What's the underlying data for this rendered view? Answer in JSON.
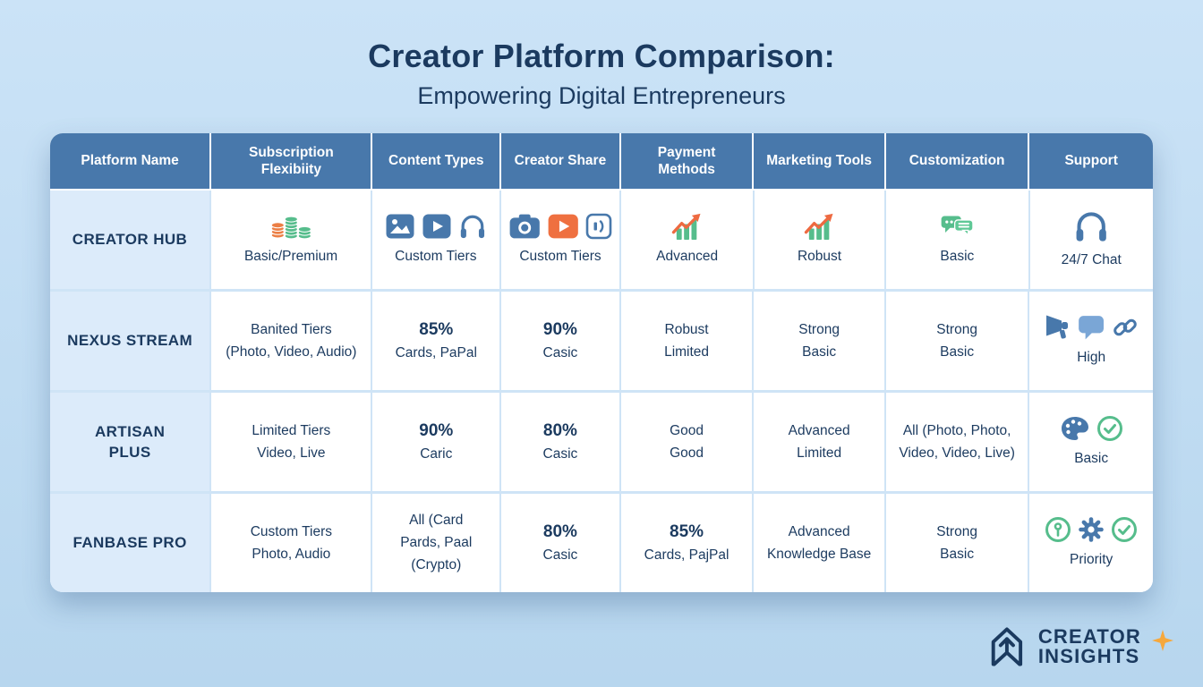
{
  "page": {
    "title": "Creator Platform Comparison:",
    "subtitle": "Empowering Digital Entrepreneurs"
  },
  "colors": {
    "navy_text": "#1b3a5f",
    "header_blue": "#4878ab",
    "light_blue_background": "#cbe3f7",
    "cell_divider": "#cfe4f6",
    "platform_column_background": "#dcebfa",
    "icon_green": "#56bd8c",
    "icon_orange": "#ee6a41",
    "icon_blue": "#4878ab",
    "sparkle_orange": "#f6a83c"
  },
  "table": {
    "headers": [
      "Platform Name",
      "Subscription Flexibiity",
      "Content Types",
      "Creator Share",
      "Payment Methods",
      "Marketing Tools",
      "Customization",
      "Support"
    ],
    "rows": [
      {
        "platform": [
          "CREATOR HUB"
        ],
        "cells": [
          {
            "icons": [
              "coin-stacks-icon"
            ],
            "lines": [
              {
                "text": "Basic/Premium"
              }
            ]
          },
          {
            "icons": [
              "image-icon",
              "video-play-icon",
              "headphones-icon"
            ],
            "lines": [
              {
                "text": "Custom Tiers"
              }
            ]
          },
          {
            "icons": [
              "camera-icon",
              "play-button-icon",
              "audio-card-icon"
            ],
            "lines": [
              {
                "text": "Custom Tiers"
              }
            ]
          },
          {
            "icons": [
              "growth-chart-icon"
            ],
            "lines": [
              {
                "text": "Advanced"
              }
            ]
          },
          {
            "icons": [
              "growth-chart-icon"
            ],
            "lines": [
              {
                "text": "Robust"
              }
            ]
          },
          {
            "icons": [
              "chat-bubbles-icon"
            ],
            "lines": [
              {
                "text": "Basic"
              }
            ]
          },
          {
            "icons": [
              "headphones-icon"
            ],
            "icon_size": "lg",
            "lines": [
              {
                "text": "24/7 Chat"
              }
            ]
          }
        ]
      },
      {
        "platform": [
          "NEXUS STREAM"
        ],
        "cells": [
          {
            "lines": [
              {
                "text": "Banited Tiers"
              },
              {
                "text": "(Photo, Video, Audio)"
              }
            ]
          },
          {
            "lines": [
              {
                "text": "85%",
                "bold": true
              },
              {
                "text": "Cards, PaPal"
              }
            ]
          },
          {
            "lines": [
              {
                "text": "90%",
                "bold": true
              },
              {
                "text": "Casic"
              }
            ]
          },
          {
            "lines": [
              {
                "text": "Robust"
              },
              {
                "text": "Limited"
              }
            ]
          },
          {
            "lines": [
              {
                "text": "Strong"
              },
              {
                "text": "Basic"
              }
            ]
          },
          {
            "lines": [
              {
                "text": "Strong"
              },
              {
                "text": "Basic"
              }
            ]
          },
          {
            "icons": [
              "megaphone-icon",
              "speech-bubble-icon",
              "link-icon"
            ],
            "lines": [
              {
                "text": "High"
              }
            ]
          }
        ]
      },
      {
        "platform": [
          "ARTISAN",
          "PLUS"
        ],
        "cells": [
          {
            "lines": [
              {
                "text": "Limited Tiers"
              },
              {
                "text": "Video, Live"
              }
            ]
          },
          {
            "lines": [
              {
                "text": "90%",
                "bold": true
              },
              {
                "text": "Caric"
              }
            ]
          },
          {
            "lines": [
              {
                "text": "80%",
                "bold": true
              },
              {
                "text": "Casic"
              }
            ]
          },
          {
            "lines": [
              {
                "text": "Good"
              },
              {
                "text": "Good"
              }
            ]
          },
          {
            "lines": [
              {
                "text": "Advanced"
              },
              {
                "text": "Limited"
              }
            ]
          },
          {
            "lines": [
              {
                "text": "All (Photo, Photo,"
              },
              {
                "text": "Video, Video, Live)"
              }
            ]
          },
          {
            "icons": [
              "palette-icon",
              "check-circle-icon"
            ],
            "lines": [
              {
                "text": "Basic"
              }
            ]
          }
        ]
      },
      {
        "platform": [
          "FANBASE PRO"
        ],
        "cells": [
          {
            "lines": [
              {
                "text": "Custom Tiers"
              },
              {
                "text": "Photo, Audio"
              }
            ]
          },
          {
            "lines": [
              {
                "text": "All (Card"
              },
              {
                "text": "Pards, Paal"
              },
              {
                "text": "(Crypto)"
              }
            ]
          },
          {
            "lines": [
              {
                "text": "80%",
                "bold": true
              },
              {
                "text": "Casic"
              }
            ]
          },
          {
            "lines": [
              {
                "text": "85%",
                "bold": true
              },
              {
                "text": "Cards, PajPal"
              }
            ]
          },
          {
            "lines": [
              {
                "text": "Advanced"
              },
              {
                "text": "Knowledge Base"
              }
            ]
          },
          {
            "lines": [
              {
                "text": "Strong"
              },
              {
                "text": "Basic"
              }
            ]
          },
          {
            "icons": [
              "key-circle-icon",
              "gear-icon",
              "check-circle-icon"
            ],
            "lines": [
              {
                "text": "Priority"
              }
            ]
          }
        ]
      }
    ]
  },
  "footer": {
    "brand_line1": "CREATOR",
    "brand_line2": "INSIGHTS"
  }
}
